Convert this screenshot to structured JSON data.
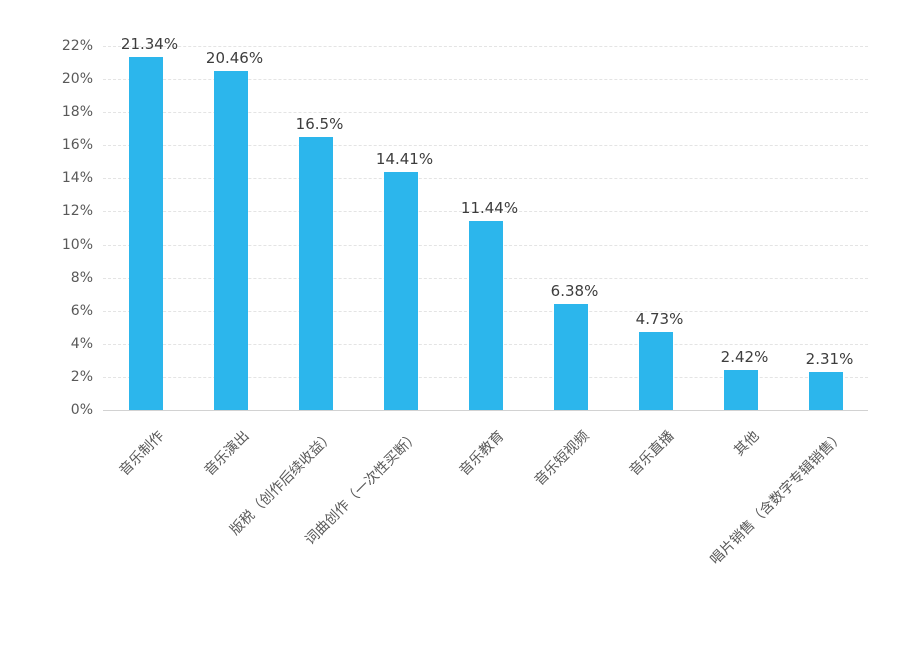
{
  "chart_data": {
    "type": "bar",
    "title": "",
    "xlabel": "",
    "ylabel": "",
    "categories": [
      "音乐制作",
      "音乐演出",
      "版税（创作后续收益）",
      "词曲创作（一次性买断）",
      "音乐教育",
      "音乐短视频",
      "音乐直播",
      "其他",
      "唱片销售（含数字专辑销售）"
    ],
    "values": [
      21.34,
      20.46,
      16.5,
      14.41,
      11.44,
      6.38,
      4.73,
      2.42,
      2.31
    ],
    "value_labels": [
      "21.34%",
      "20.46%",
      "16.5%",
      "14.41%",
      "11.44%",
      "6.38%",
      "4.73%",
      "2.42%",
      "2.31%"
    ],
    "ylim": [
      0,
      22
    ],
    "ytick_step": 2,
    "ytick_labels": [
      "0%",
      "2%",
      "4%",
      "6%",
      "8%",
      "10%",
      "12%",
      "14%",
      "16%",
      "18%",
      "20%",
      "22%"
    ],
    "grid": "horizontal-dashed",
    "legend": "none",
    "x_label_rotation_deg": 45,
    "colors": {
      "bar": "#2cb6ec",
      "value_label": "#3d3d3d",
      "axis_text": "#595959",
      "gridline": "#e4e4e4",
      "axis_line": "#d2d2d2",
      "background": "#ffffff"
    }
  }
}
